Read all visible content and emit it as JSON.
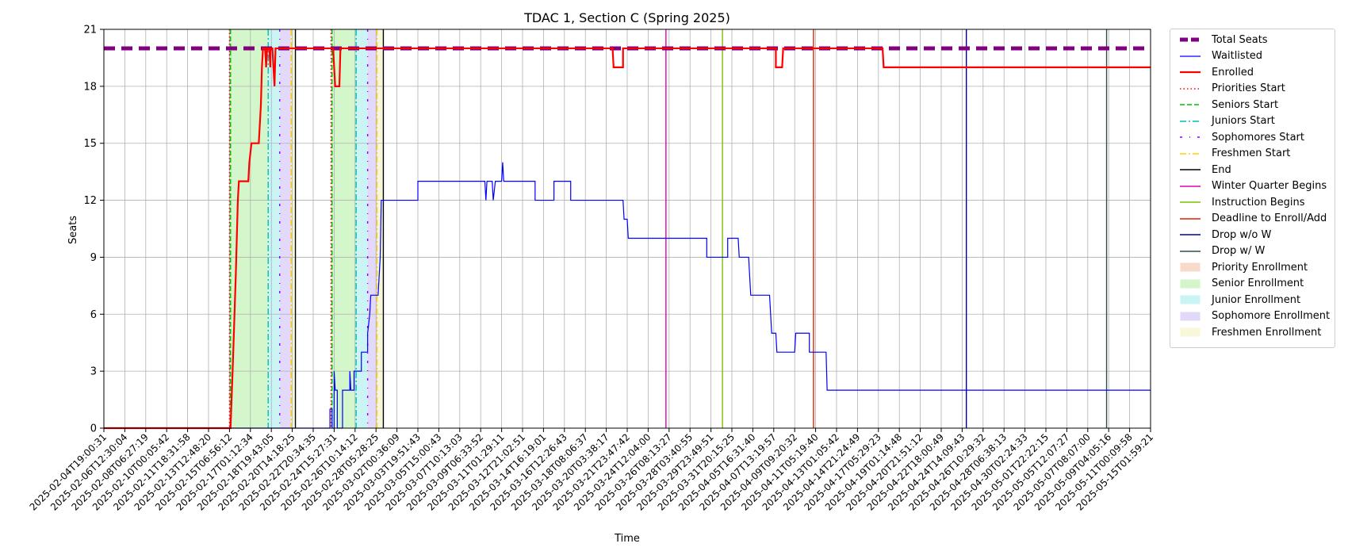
{
  "chart_data": {
    "type": "line",
    "title": "TDAC 1, Section C (Spring 2025)",
    "xlabel": "Time",
    "ylabel": "Seats",
    "ylim": [
      0,
      21
    ],
    "yticks": [
      0,
      3,
      6,
      9,
      12,
      15,
      18,
      21
    ],
    "grid": true,
    "legend_position": "outside-right",
    "x_tick_labels": [
      "2025-02-04T19:00:31",
      "2025-02-06T12:30:04",
      "2025-02-08T06:27:19",
      "2025-02-10T00:05:42",
      "2025-02-11T18:31:58",
      "2025-02-13T12:48:20",
      "2025-02-15T06:56:12",
      "2025-02-17T01:12:34",
      "2025-02-18T19:43:05",
      "2025-02-20T14:18:25",
      "2025-02-22T20:34:35",
      "2025-02-24T15:27:31",
      "2025-02-26T10:14:12",
      "2025-02-28T05:28:25",
      "2025-03-02T00:36:09",
      "2025-03-03T19:51:43",
      "2025-03-05T15:00:43",
      "2025-03-07T10:13:03",
      "2025-03-09T06:33:52",
      "2025-03-11T01:29:11",
      "2025-03-12T21:02:51",
      "2025-03-14T16:19:01",
      "2025-03-16T12:26:43",
      "2025-03-18T08:06:37",
      "2025-03-20T03:38:17",
      "2025-03-21T23:47:42",
      "2025-03-24T12:04:00",
      "2025-03-26T08:13:27",
      "2025-03-28T03:40:55",
      "2025-03-29T23:49:51",
      "2025-03-31T20:15:25",
      "2025-04-05T16:31:40",
      "2025-04-07T13:19:57",
      "2025-04-09T09:20:32",
      "2025-04-11T05:19:40",
      "2025-04-13T01:05:42",
      "2025-04-14T21:24:49",
      "2025-04-17T05:29:23",
      "2025-04-19T01:14:48",
      "2025-04-20T21:51:12",
      "2025-04-22T18:00:49",
      "2025-04-24T14:09:43",
      "2025-04-26T10:29:32",
      "2025-04-28T06:38:13",
      "2025-04-30T02:24:33",
      "2025-05-01T22:22:15",
      "2025-05-05T12:07:27",
      "2025-05-07T08:07:00",
      "2025-05-09T04:05:16",
      "2025-05-11T00:09:58",
      "2025-05-15T01:59:21"
    ],
    "series": [
      {
        "name": "Total Seats",
        "color": "#800080",
        "style": "dashed",
        "points": [
          [
            0,
            20
          ],
          [
            50,
            20
          ]
        ]
      },
      {
        "name": "Waitlisted",
        "color": "#0000ff",
        "style": "solid",
        "points": [
          [
            0,
            0
          ],
          [
            10.8,
            0
          ],
          [
            10.8,
            1
          ],
          [
            10.9,
            1
          ],
          [
            10.9,
            0
          ],
          [
            11.0,
            0
          ],
          [
            11.0,
            3
          ],
          [
            11.05,
            2
          ],
          [
            11.15,
            2
          ],
          [
            11.15,
            0
          ],
          [
            11.4,
            0
          ],
          [
            11.4,
            2
          ],
          [
            11.75,
            2
          ],
          [
            11.75,
            3
          ],
          [
            11.8,
            2
          ],
          [
            11.95,
            2
          ],
          [
            11.95,
            3
          ],
          [
            12.3,
            3
          ],
          [
            12.3,
            4
          ],
          [
            12.6,
            4
          ],
          [
            12.6,
            5
          ],
          [
            12.7,
            6
          ],
          [
            12.75,
            7
          ],
          [
            13.1,
            7
          ],
          [
            13.2,
            9
          ],
          [
            13.25,
            12
          ],
          [
            15.0,
            12
          ],
          [
            15.0,
            13
          ],
          [
            18.2,
            13
          ],
          [
            18.25,
            12
          ],
          [
            18.3,
            13
          ],
          [
            18.55,
            13
          ],
          [
            18.6,
            12
          ],
          [
            18.7,
            13
          ],
          [
            19.0,
            13
          ],
          [
            19.05,
            14
          ],
          [
            19.1,
            13
          ],
          [
            20.6,
            13
          ],
          [
            20.6,
            12
          ],
          [
            21.5,
            12
          ],
          [
            21.5,
            13
          ],
          [
            22.3,
            13
          ],
          [
            22.3,
            12
          ],
          [
            24.8,
            12
          ],
          [
            24.85,
            11
          ],
          [
            25.0,
            11
          ],
          [
            25.05,
            10
          ],
          [
            28.8,
            10
          ],
          [
            28.8,
            9
          ],
          [
            29.8,
            9
          ],
          [
            29.8,
            10
          ],
          [
            30.3,
            10
          ],
          [
            30.35,
            9
          ],
          [
            30.8,
            9
          ],
          [
            30.85,
            8
          ],
          [
            30.9,
            7
          ],
          [
            31.8,
            7
          ],
          [
            31.85,
            6
          ],
          [
            31.9,
            5
          ],
          [
            32.1,
            5
          ],
          [
            32.15,
            4
          ],
          [
            33.0,
            4
          ],
          [
            33.05,
            5
          ],
          [
            33.7,
            5
          ],
          [
            33.7,
            4
          ],
          [
            34.5,
            4
          ],
          [
            34.55,
            2
          ],
          [
            50,
            2
          ]
        ]
      },
      {
        "name": "Enrolled",
        "color": "#ff0000",
        "style": "solid",
        "points": [
          [
            0,
            0
          ],
          [
            6.05,
            0
          ],
          [
            6.15,
            3
          ],
          [
            6.3,
            8
          ],
          [
            6.4,
            12
          ],
          [
            6.45,
            13
          ],
          [
            6.9,
            13
          ],
          [
            6.95,
            14
          ],
          [
            7.05,
            15
          ],
          [
            7.4,
            15
          ],
          [
            7.5,
            17
          ],
          [
            7.55,
            19
          ],
          [
            7.6,
            20
          ],
          [
            7.7,
            20
          ],
          [
            7.75,
            19
          ],
          [
            7.8,
            20
          ],
          [
            7.85,
            20
          ],
          [
            7.9,
            20
          ],
          [
            7.95,
            19
          ],
          [
            7.95,
            20
          ],
          [
            8.05,
            20
          ],
          [
            8.1,
            19
          ],
          [
            8.15,
            18
          ],
          [
            8.2,
            20
          ],
          [
            10.95,
            20
          ],
          [
            11.0,
            19
          ],
          [
            11.05,
            18
          ],
          [
            11.25,
            18
          ],
          [
            11.3,
            20
          ],
          [
            24.3,
            20
          ],
          [
            24.35,
            19
          ],
          [
            24.8,
            19
          ],
          [
            24.8,
            20
          ],
          [
            32.1,
            20
          ],
          [
            32.1,
            19
          ],
          [
            32.4,
            19
          ],
          [
            32.45,
            20
          ],
          [
            37.2,
            20
          ],
          [
            37.25,
            19
          ],
          [
            50,
            19
          ]
        ]
      }
    ],
    "vertical_markers": [
      {
        "name": "Priorities Start",
        "color": "#ff0000",
        "style": "dotted",
        "x": [
          6.0,
          10.85
        ]
      },
      {
        "name": "Seniors Start",
        "color": "#00c000",
        "style": "dashed",
        "x": [
          6.05,
          10.9
        ]
      },
      {
        "name": "Juniors Start",
        "color": "#00bfbf",
        "style": "dashdot",
        "x": [
          7.85,
          12.05
        ]
      },
      {
        "name": "Sophomores Start",
        "color": "#8000ff",
        "style": "dashdotted",
        "x": [
          8.4,
          12.6
        ]
      },
      {
        "name": "Freshmen Start",
        "color": "#ffd000",
        "style": "dashdot",
        "x": [
          8.95,
          13.05
        ]
      },
      {
        "name": "End",
        "color": "#000000",
        "style": "solid",
        "x": [
          9.15,
          13.35
        ]
      },
      {
        "name": "Winter Quarter Begins",
        "color": "#e000b0",
        "style": "solid",
        "x": [
          26.85
        ]
      },
      {
        "name": "Instruction Begins",
        "color": "#7cc000",
        "style": "solid",
        "x": [
          29.55
        ]
      },
      {
        "name": "Deadline to Enroll/Add",
        "color": "#e02000",
        "style": "solid",
        "x": [
          33.9
        ]
      },
      {
        "name": "Drop w/o W",
        "color": "#00008b",
        "style": "solid",
        "x": [
          41.2
        ]
      },
      {
        "name": "Drop w/ W",
        "color": "#2f4f4f",
        "style": "solid",
        "x": [
          47.9
        ]
      }
    ],
    "shaded_periods": [
      {
        "name": "Priority Enrollment",
        "color": "#f4c2a8",
        "ranges": [
          [
            6.0,
            6.05
          ],
          [
            10.85,
            10.9
          ]
        ]
      },
      {
        "name": "Senior Enrollment",
        "color": "#b8f0a8",
        "ranges": [
          [
            6.05,
            7.85
          ],
          [
            10.9,
            12.05
          ]
        ]
      },
      {
        "name": "Junior Enrollment",
        "color": "#a8ecec",
        "ranges": [
          [
            7.85,
            8.4
          ],
          [
            12.05,
            12.6
          ]
        ]
      },
      {
        "name": "Sophomore Enrollment",
        "color": "#d0c0f8",
        "ranges": [
          [
            8.4,
            8.95
          ],
          [
            12.6,
            13.05
          ]
        ]
      },
      {
        "name": "Freshmen Enrollment",
        "color": "#f4f4c0",
        "ranges": [
          [
            8.95,
            9.15
          ],
          [
            13.05,
            13.35
          ]
        ]
      }
    ],
    "legend": [
      {
        "label": "Total Seats",
        "kind": "line",
        "color": "#800080",
        "style": "dashed",
        "width": 5
      },
      {
        "label": "Waitlisted",
        "kind": "line",
        "color": "#0000ff",
        "style": "solid",
        "width": 1.2
      },
      {
        "label": "Enrolled",
        "kind": "line",
        "color": "#ff0000",
        "style": "solid",
        "width": 2.2
      },
      {
        "label": "Priorities Start",
        "kind": "line",
        "color": "#ff0000",
        "style": "dotted",
        "width": 1.4
      },
      {
        "label": "Seniors Start",
        "kind": "line",
        "color": "#00c000",
        "style": "dashed",
        "width": 1.4
      },
      {
        "label": "Juniors Start",
        "kind": "line",
        "color": "#00bfbf",
        "style": "dashdot",
        "width": 1.4
      },
      {
        "label": "Sophomores Start",
        "kind": "line",
        "color": "#8000ff",
        "style": "dashdotted",
        "width": 1.4
      },
      {
        "label": "Freshmen Start",
        "kind": "line",
        "color": "#ffd000",
        "style": "dashdot",
        "width": 1.4
      },
      {
        "label": "End",
        "kind": "line",
        "color": "#000000",
        "style": "solid",
        "width": 1.4
      },
      {
        "label": "Winter Quarter Begins",
        "kind": "line",
        "color": "#e000b0",
        "style": "solid",
        "width": 1.4
      },
      {
        "label": "Instruction Begins",
        "kind": "line",
        "color": "#7cc000",
        "style": "solid",
        "width": 1.4
      },
      {
        "label": "Deadline to Enroll/Add",
        "kind": "line",
        "color": "#e02000",
        "style": "solid",
        "width": 1.4
      },
      {
        "label": "Drop w/o W",
        "kind": "line",
        "color": "#00008b",
        "style": "solid",
        "width": 1.4
      },
      {
        "label": "Drop w/ W",
        "kind": "line",
        "color": "#2f4f4f",
        "style": "solid",
        "width": 1.4
      },
      {
        "label": "Priority Enrollment",
        "kind": "patch",
        "color": "#f4c2a8"
      },
      {
        "label": "Senior Enrollment",
        "kind": "patch",
        "color": "#b8f0a8"
      },
      {
        "label": "Junior Enrollment",
        "kind": "patch",
        "color": "#a8ecec"
      },
      {
        "label": "Sophomore Enrollment",
        "kind": "patch",
        "color": "#d0c0f8"
      },
      {
        "label": "Freshmen Enrollment",
        "kind": "patch",
        "color": "#f4f4c0"
      }
    ]
  }
}
